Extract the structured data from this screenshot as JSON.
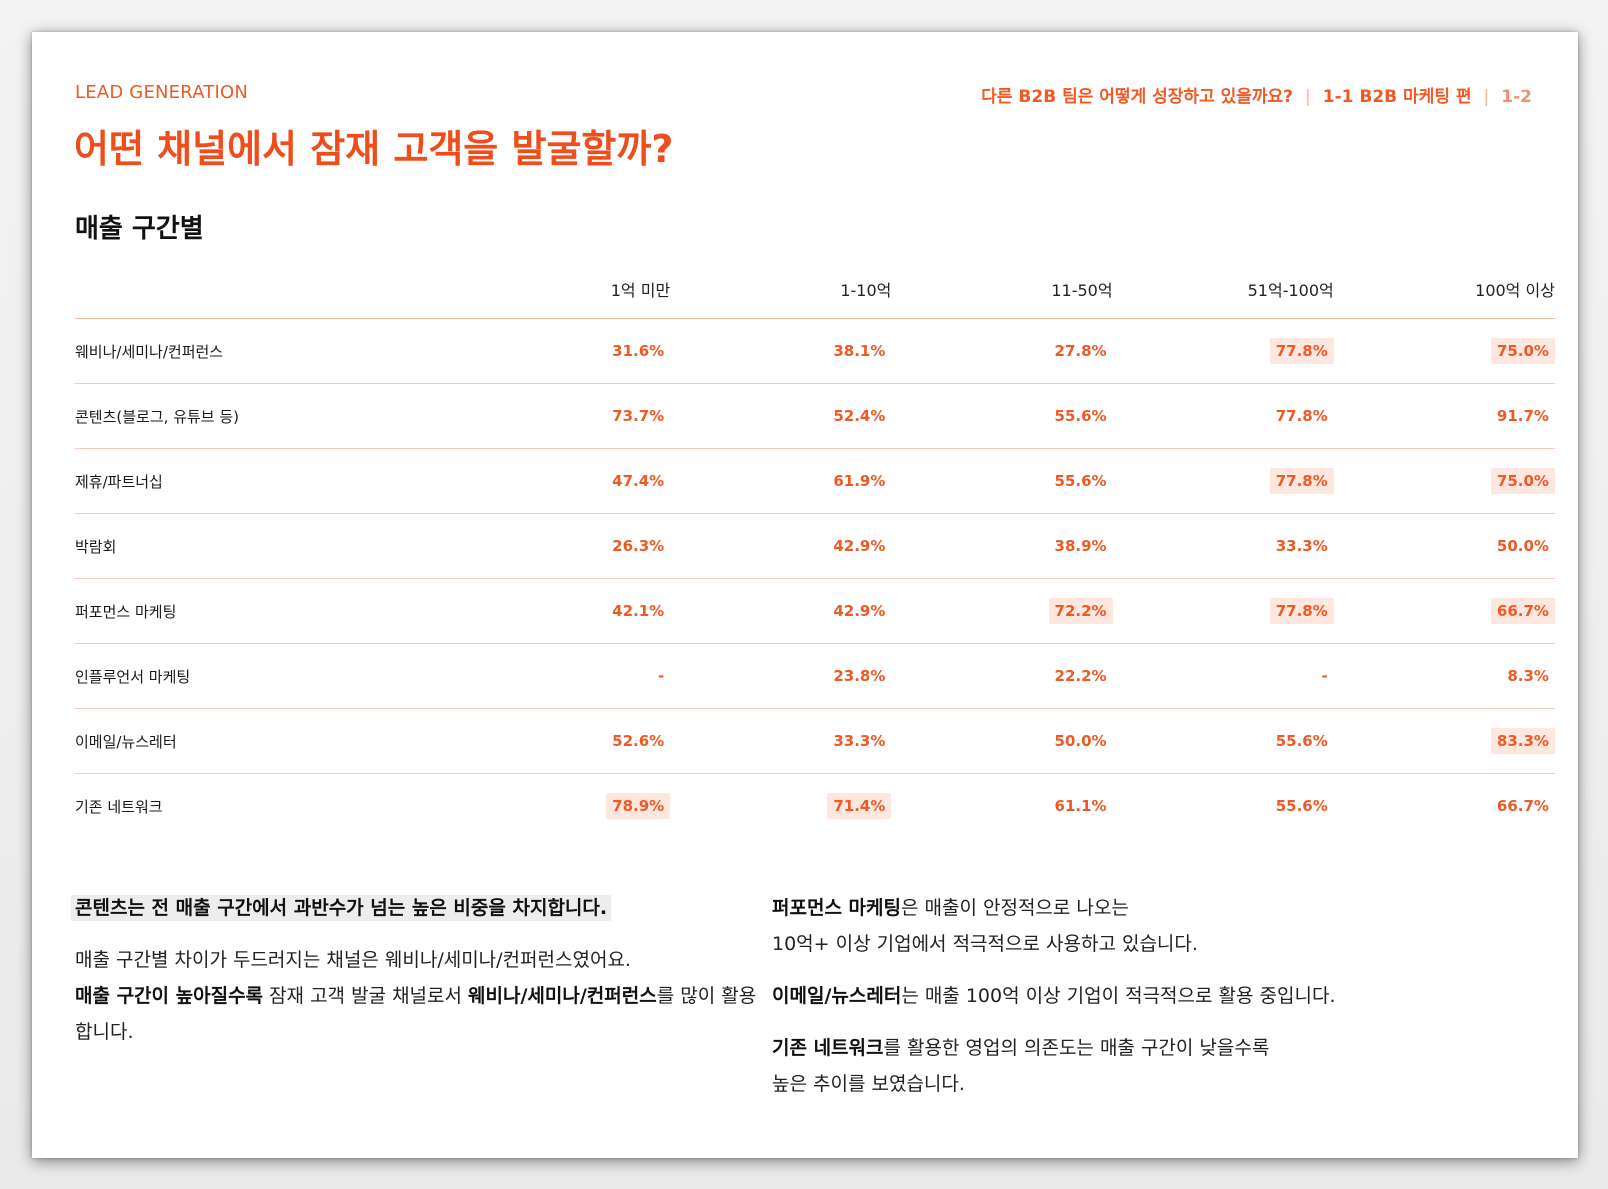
{
  "header": {
    "eyebrow": "LEAD GENERATION",
    "title": "어떤 채널에서 잠재 고객을 발굴할까?",
    "right_question": "다른 B2B 팀은 어떻게 성장하고 있을까요?",
    "right_series": "1-1 B2B 마케팅 편",
    "right_page": "1-2",
    "separator": "|"
  },
  "section": {
    "title": "매출 구간별"
  },
  "table": {
    "columns": [
      "1억 미만",
      "1-10억",
      "11-50억",
      "51억-100억",
      "100억 이상"
    ],
    "rows": [
      {
        "label": "웨비나/세미나/컨퍼런스",
        "cells": [
          {
            "v": "31.6%",
            "hl": false
          },
          {
            "v": "38.1%",
            "hl": false
          },
          {
            "v": "27.8%",
            "hl": false
          },
          {
            "v": "77.8%",
            "hl": true
          },
          {
            "v": "75.0%",
            "hl": true
          }
        ]
      },
      {
        "label": "콘텐츠(블로그, 유튜브 등)",
        "cells": [
          {
            "v": "73.7%",
            "hl": false
          },
          {
            "v": "52.4%",
            "hl": false
          },
          {
            "v": "55.6%",
            "hl": false
          },
          {
            "v": "77.8%",
            "hl": false
          },
          {
            "v": "91.7%",
            "hl": false
          }
        ]
      },
      {
        "label": "제휴/파트너십",
        "cells": [
          {
            "v": "47.4%",
            "hl": false
          },
          {
            "v": "61.9%",
            "hl": false
          },
          {
            "v": "55.6%",
            "hl": false
          },
          {
            "v": "77.8%",
            "hl": true
          },
          {
            "v": "75.0%",
            "hl": true
          }
        ]
      },
      {
        "label": "박람회",
        "cells": [
          {
            "v": "26.3%",
            "hl": false
          },
          {
            "v": "42.9%",
            "hl": false
          },
          {
            "v": "38.9%",
            "hl": false
          },
          {
            "v": "33.3%",
            "hl": false
          },
          {
            "v": "50.0%",
            "hl": false
          }
        ]
      },
      {
        "label": "퍼포먼스 마케팅",
        "cells": [
          {
            "v": "42.1%",
            "hl": false
          },
          {
            "v": "42.9%",
            "hl": false
          },
          {
            "v": "72.2%",
            "hl": true
          },
          {
            "v": "77.8%",
            "hl": true
          },
          {
            "v": "66.7%",
            "hl": true
          }
        ]
      },
      {
        "label": "인플루언서 마케팅",
        "cells": [
          {
            "v": "-",
            "hl": false
          },
          {
            "v": "23.8%",
            "hl": false
          },
          {
            "v": "22.2%",
            "hl": false
          },
          {
            "v": "-",
            "hl": false
          },
          {
            "v": "8.3%",
            "hl": false
          }
        ]
      },
      {
        "label": "이메일/뉴스레터",
        "cells": [
          {
            "v": "52.6%",
            "hl": false
          },
          {
            "v": "33.3%",
            "hl": false
          },
          {
            "v": "50.0%",
            "hl": false
          },
          {
            "v": "55.6%",
            "hl": false
          },
          {
            "v": "83.3%",
            "hl": true
          }
        ]
      },
      {
        "label": "기존 네트워크",
        "cells": [
          {
            "v": "78.9%",
            "hl": true
          },
          {
            "v": "71.4%",
            "hl": true
          },
          {
            "v": "61.1%",
            "hl": false
          },
          {
            "v": "55.6%",
            "hl": false
          },
          {
            "v": "66.7%",
            "hl": false
          }
        ]
      }
    ]
  },
  "notes_left": {
    "lead": "콘텐츠는 전 매출 구간에서 과반수가 넘는 높은 비중을 차지합니다.",
    "p2_a": "매출 구간별 차이가 두드러지는 채널은 웨비나/세미나/컨퍼런스였어요.",
    "p2_b_bold": "매출 구간이 높아질수록",
    "p2_b_mid": " 잠재 고객 발굴 채널로서 ",
    "p2_b_bold2": "웨비나/세미나/컨퍼런스",
    "p2_b_end": "를 많이 활용합니다."
  },
  "notes_right": {
    "p1_bold": "퍼포먼스 마케팅",
    "p1_a": "은 매출이 안정적으로 나오는",
    "p1_b": "10억+ 이상 기업에서 적극적으로 사용하고 있습니다.",
    "p2_bold": "이메일/뉴스레터",
    "p2": "는 매출 100억 이상 기업이 적극적으로 활용 중입니다.",
    "p3_bold": "기존 네트워크",
    "p3_a": "를 활용한 영업의 의존도는 매출 구간이 낮을수록",
    "p3_b": "높은 추이를 보였습니다."
  },
  "colors": {
    "accent": "#ef5a24",
    "highlight": "#fde7de",
    "rule": "#f8cbb9"
  }
}
